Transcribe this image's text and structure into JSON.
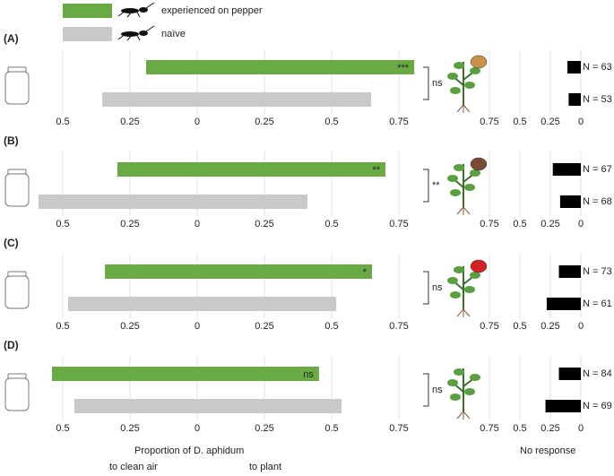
{
  "chart_data": {
    "type": "diverging_bar",
    "series": [
      {
        "name": "experienced on pepper",
        "color": "#6aaa45"
      },
      {
        "name": "naïve",
        "color": "#c9c9c9"
      }
    ],
    "xlim": [
      -0.6,
      0.85
    ],
    "xticks": [
      {
        "value": -0.5,
        "label": "0.5"
      },
      {
        "value": -0.25,
        "label": "0.25"
      },
      0,
      0.25,
      0.5,
      0.75
    ],
    "x2lim": [
      1,
      0
    ],
    "x2ticks": [
      0.75,
      0.5,
      0.25,
      0
    ],
    "xlabel": "Proportion of D. aphidum",
    "x_sublabels": [
      "to clean air",
      "to plant"
    ],
    "x2label": "No response",
    "grid": true,
    "panels": [
      {
        "label": "(A)",
        "clean_air": [
          -0.19,
          -0.353
        ],
        "plant": [
          0.807,
          0.647
        ],
        "bar_annotation": "***",
        "bracket_annotation": "ns",
        "no_response": [
          0.11,
          0.1
        ],
        "n_labels": [
          "N = 63",
          "N = 53"
        ]
      },
      {
        "label": "(B)",
        "clean_air": [
          -0.297,
          -0.59
        ],
        "plant": [
          0.7,
          0.41
        ],
        "bar_annotation": "**",
        "bracket_annotation": "**",
        "no_response": [
          0.23,
          0.17
        ],
        "n_labels": [
          "N = 67",
          "N = 68"
        ]
      },
      {
        "label": "(C)",
        "clean_air": [
          -0.343,
          -0.48
        ],
        "plant": [
          0.65,
          0.517
        ],
        "bar_annotation": "*",
        "bracket_annotation": "ns",
        "no_response": [
          0.18,
          0.28
        ],
        "n_labels": [
          "N = 73",
          "N = 61"
        ]
      },
      {
        "label": "(D)",
        "clean_air": [
          -0.54,
          -0.457
        ],
        "plant": [
          0.453,
          0.537
        ],
        "bar_annotation": "ns",
        "bracket_annotation": "ns",
        "no_response": [
          0.18,
          0.29
        ],
        "n_labels": [
          "N = 84",
          "N = 69"
        ]
      }
    ]
  }
}
